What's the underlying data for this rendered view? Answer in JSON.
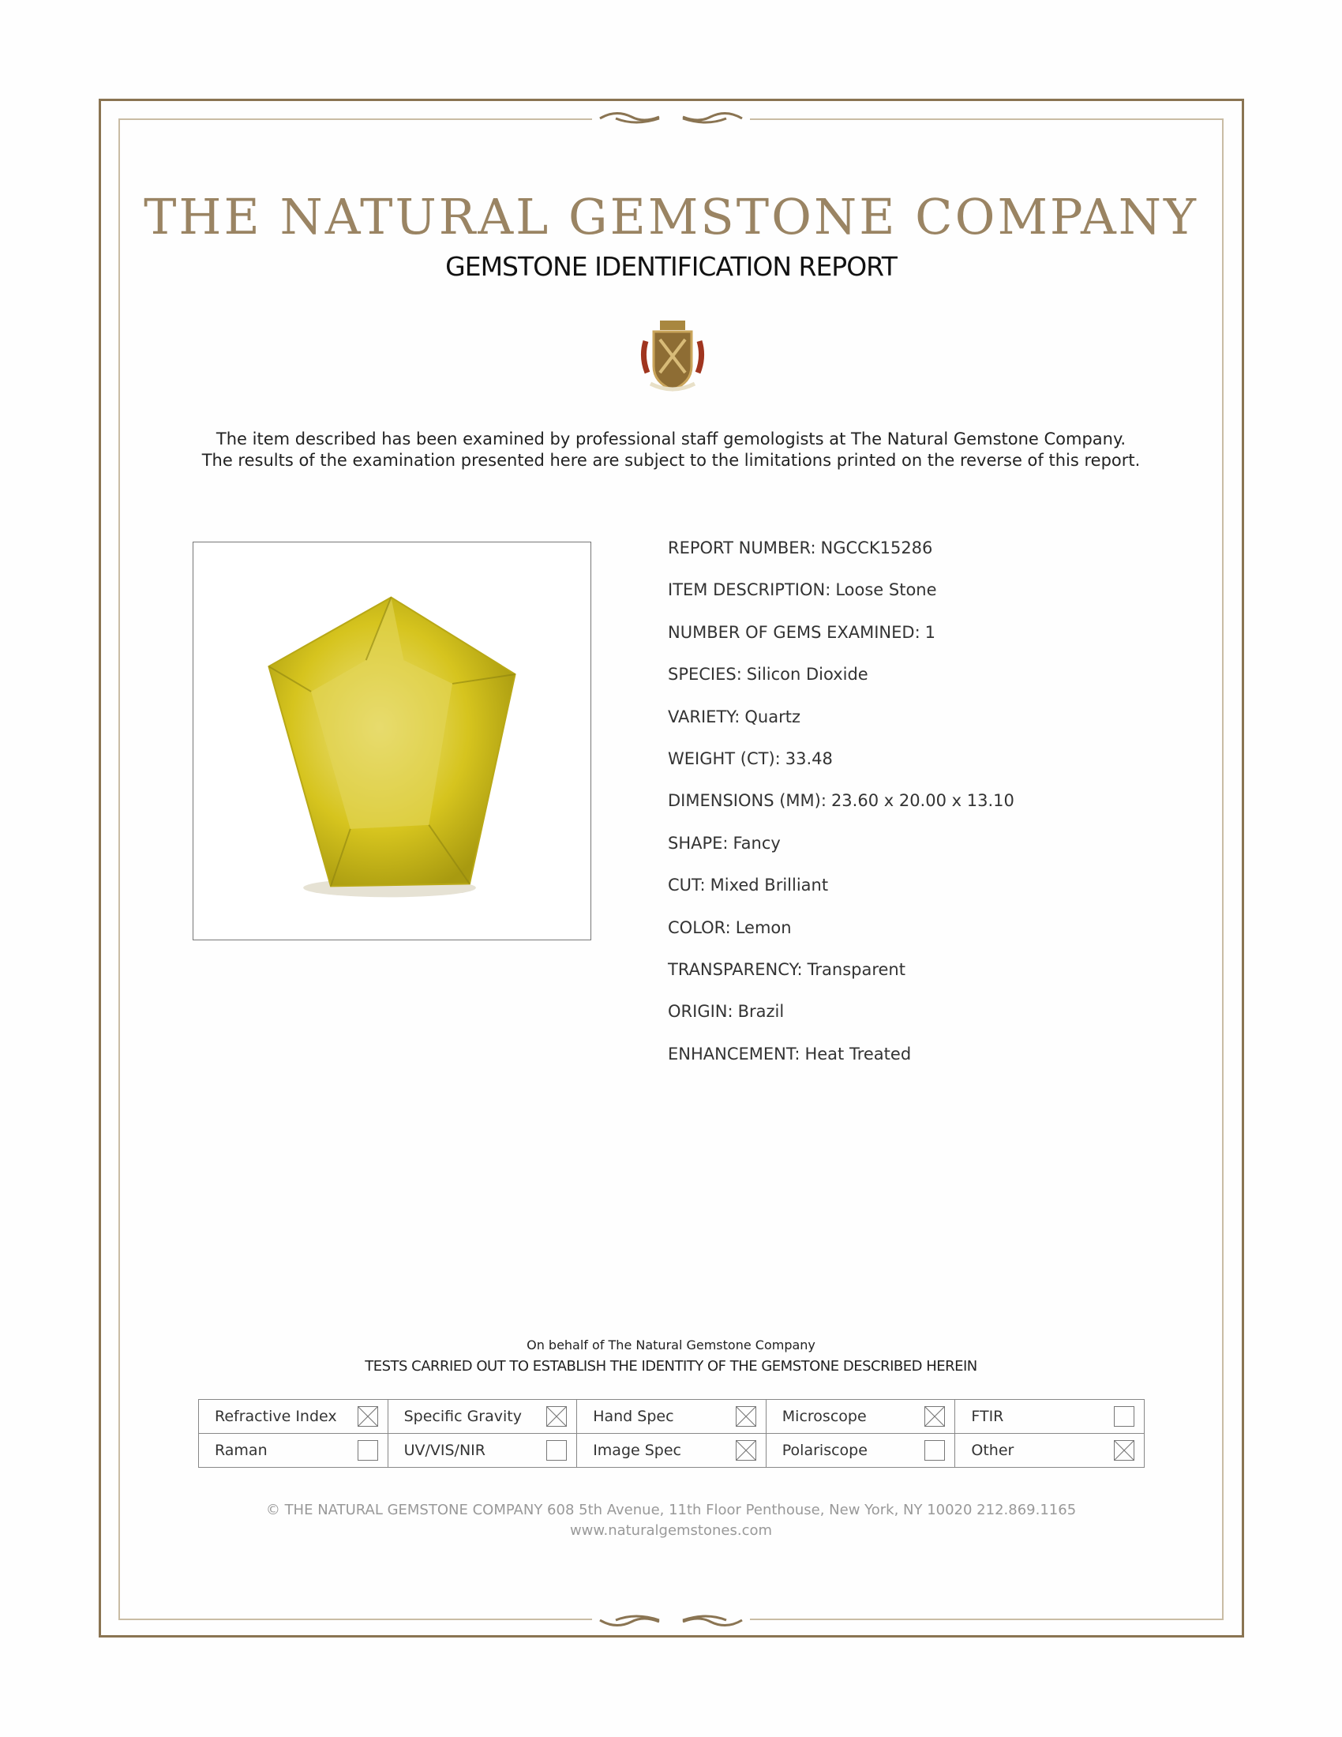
{
  "header": {
    "company": "THE NATURAL GEMSTONE COMPANY",
    "report_title": "GEMSTONE IDENTIFICATION REPORT"
  },
  "intro": {
    "line1": "The item described has been examined by professional staff gemologists at The Natural Gemstone Company.",
    "line2": "The results of the examination presented here are subject to the limitations printed on the reverse of this report."
  },
  "details": [
    {
      "label": "REPORT NUMBER:",
      "value": "NGCCK15286"
    },
    {
      "label": "ITEM DESCRIPTION:",
      "value": "Loose Stone"
    },
    {
      "label": "NUMBER OF GEMS EXAMINED:",
      "value": "1"
    },
    {
      "label": "SPECIES:",
      "value": "Silicon Dioxide"
    },
    {
      "label": "VARIETY:",
      "value": "Quartz"
    },
    {
      "label": "WEIGHT (CT):",
      "value": "33.48"
    },
    {
      "label": "DIMENSIONS (MM):",
      "value": "23.60 x 20.00 x 13.10"
    },
    {
      "label": "SHAPE:",
      "value": "Fancy"
    },
    {
      "label": "CUT:",
      "value": "Mixed Brilliant"
    },
    {
      "label": "COLOR:",
      "value": "Lemon"
    },
    {
      "label": "TRANSPARENCY:",
      "value": "Transparent"
    },
    {
      "label": "ORIGIN:",
      "value": "Brazil"
    },
    {
      "label": "ENHANCEMENT:",
      "value": "Heat Treated"
    }
  ],
  "tests": {
    "behalf": "On behalf of The Natural Gemstone Company",
    "heading": "TESTS CARRIED OUT TO ESTABLISH THE IDENTITY OF THE GEMSTONE DESCRIBED HEREIN",
    "items": [
      {
        "label": "Refractive Index",
        "checked": true
      },
      {
        "label": "Specific Gravity",
        "checked": true
      },
      {
        "label": "Hand Spec",
        "checked": true
      },
      {
        "label": "Microscope",
        "checked": true
      },
      {
        "label": "FTIR",
        "checked": false
      },
      {
        "label": "Raman",
        "checked": false
      },
      {
        "label": "UV/VIS/NIR",
        "checked": false
      },
      {
        "label": "Image Spec",
        "checked": true
      },
      {
        "label": "Polariscope",
        "checked": false
      },
      {
        "label": "Other",
        "checked": true
      }
    ]
  },
  "footer": {
    "address": "© THE NATURAL GEMSTONE COMPANY  608 5th Avenue, 11th Floor Penthouse, New York, NY  10020   212.869.1165",
    "website": "www.naturalgemstones.com"
  },
  "colors": {
    "border": "#8a7452",
    "title": "#9a8463",
    "gem": "#d8c81c"
  }
}
